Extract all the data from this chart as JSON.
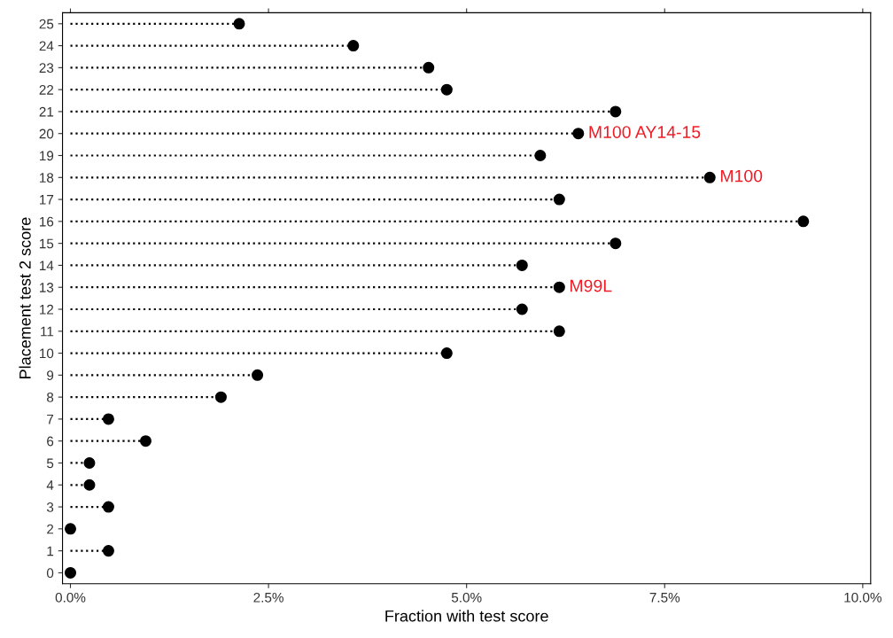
{
  "chart_data": {
    "type": "lollipop",
    "orientation": "horizontal",
    "xlabel": "Fraction with test score",
    "ylabel": "Placement test 2 score",
    "categories": [
      "25",
      "24",
      "23",
      "22",
      "21",
      "20",
      "19",
      "18",
      "17",
      "16",
      "15",
      "14",
      "13",
      "12",
      "11",
      "10",
      "9",
      "8",
      "7",
      "6",
      "5",
      "4",
      "3",
      "2",
      "1",
      "0"
    ],
    "series": [
      {
        "color": "#000000",
        "values": [
          2.13,
          3.57,
          4.52,
          4.75,
          6.88,
          6.41,
          5.93,
          8.07,
          6.17,
          9.25,
          6.88,
          5.7,
          6.17,
          5.7,
          6.17,
          4.75,
          2.36,
          1.9,
          0.48,
          0.95,
          0.24,
          0.24,
          0.48,
          0,
          0.48,
          0
        ]
      }
    ],
    "xlim": [
      -0.1,
      10.1
    ],
    "xticks": [
      {
        "value": 0,
        "label": "0.0%"
      },
      {
        "value": 2.5,
        "label": "2.5%"
      },
      {
        "value": 5,
        "label": "5.0%"
      },
      {
        "value": 7.5,
        "label": "7.5%"
      },
      {
        "value": 10,
        "label": "10.0%"
      }
    ],
    "marker": "circle",
    "line_style": "dotted",
    "grid": false,
    "annotations": [
      {
        "text": "M100 AY14-15",
        "x": 6.41,
        "y": "20"
      },
      {
        "text": "M100",
        "x": 8.07,
        "y": "18"
      },
      {
        "text": "M99L",
        "x": 6.17,
        "y": "13"
      }
    ]
  }
}
